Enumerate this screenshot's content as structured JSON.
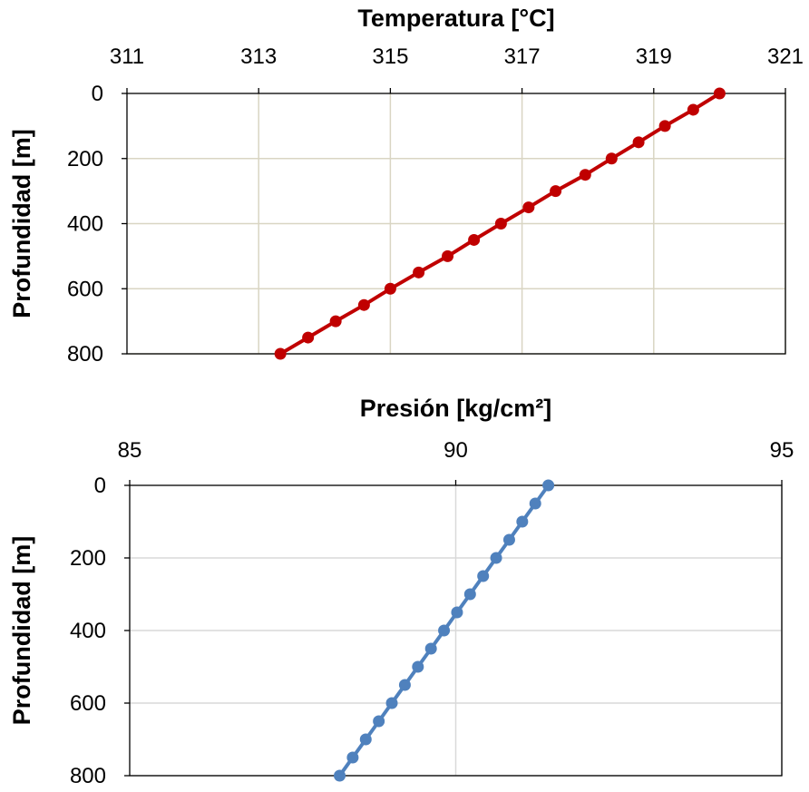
{
  "chart_data": [
    {
      "type": "line",
      "title": "Temperatura [°C]",
      "xlabel": "",
      "ylabel": "Profundidad [m]",
      "x_axis_position": "top",
      "y_axis_inverted": true,
      "xlim": [
        311,
        321
      ],
      "ylim": [
        0,
        800
      ],
      "x_ticks": [
        311,
        313,
        315,
        317,
        319,
        321
      ],
      "y_ticks": [
        0,
        200,
        400,
        600,
        800
      ],
      "x_gridlines": true,
      "y_gridlines": true,
      "marker": "circle",
      "series": [
        {
          "color": "#C00000",
          "x": [
            320.0,
            319.6,
            319.17,
            318.77,
            318.36,
            317.96,
            317.51,
            317.1,
            316.68,
            316.27,
            315.87,
            315.43,
            315.0,
            314.6,
            314.17,
            313.75,
            313.33
          ],
          "y": [
            0,
            50,
            100,
            150,
            200,
            250,
            300,
            350,
            400,
            450,
            500,
            550,
            600,
            650,
            700,
            750,
            800
          ]
        }
      ]
    },
    {
      "type": "line",
      "title": "Presión [kg/cm²]",
      "xlabel": "",
      "ylabel": "Profundidad [m]",
      "x_axis_position": "top",
      "y_axis_inverted": true,
      "xlim": [
        85,
        95
      ],
      "ylim": [
        0,
        800
      ],
      "x_ticks": [
        85,
        90,
        95
      ],
      "y_ticks": [
        0,
        200,
        400,
        600,
        800
      ],
      "x_gridlines": true,
      "y_gridlines": true,
      "marker": "circle",
      "series": [
        {
          "color": "#4F81BD",
          "x": [
            91.42,
            91.22,
            91.02,
            90.82,
            90.62,
            90.42,
            90.22,
            90.02,
            89.82,
            89.62,
            89.42,
            89.22,
            89.02,
            88.82,
            88.62,
            88.42,
            88.22
          ],
          "y": [
            0,
            50,
            100,
            150,
            200,
            250,
            300,
            350,
            400,
            450,
            500,
            550,
            600,
            650,
            700,
            750,
            800
          ]
        }
      ]
    }
  ]
}
